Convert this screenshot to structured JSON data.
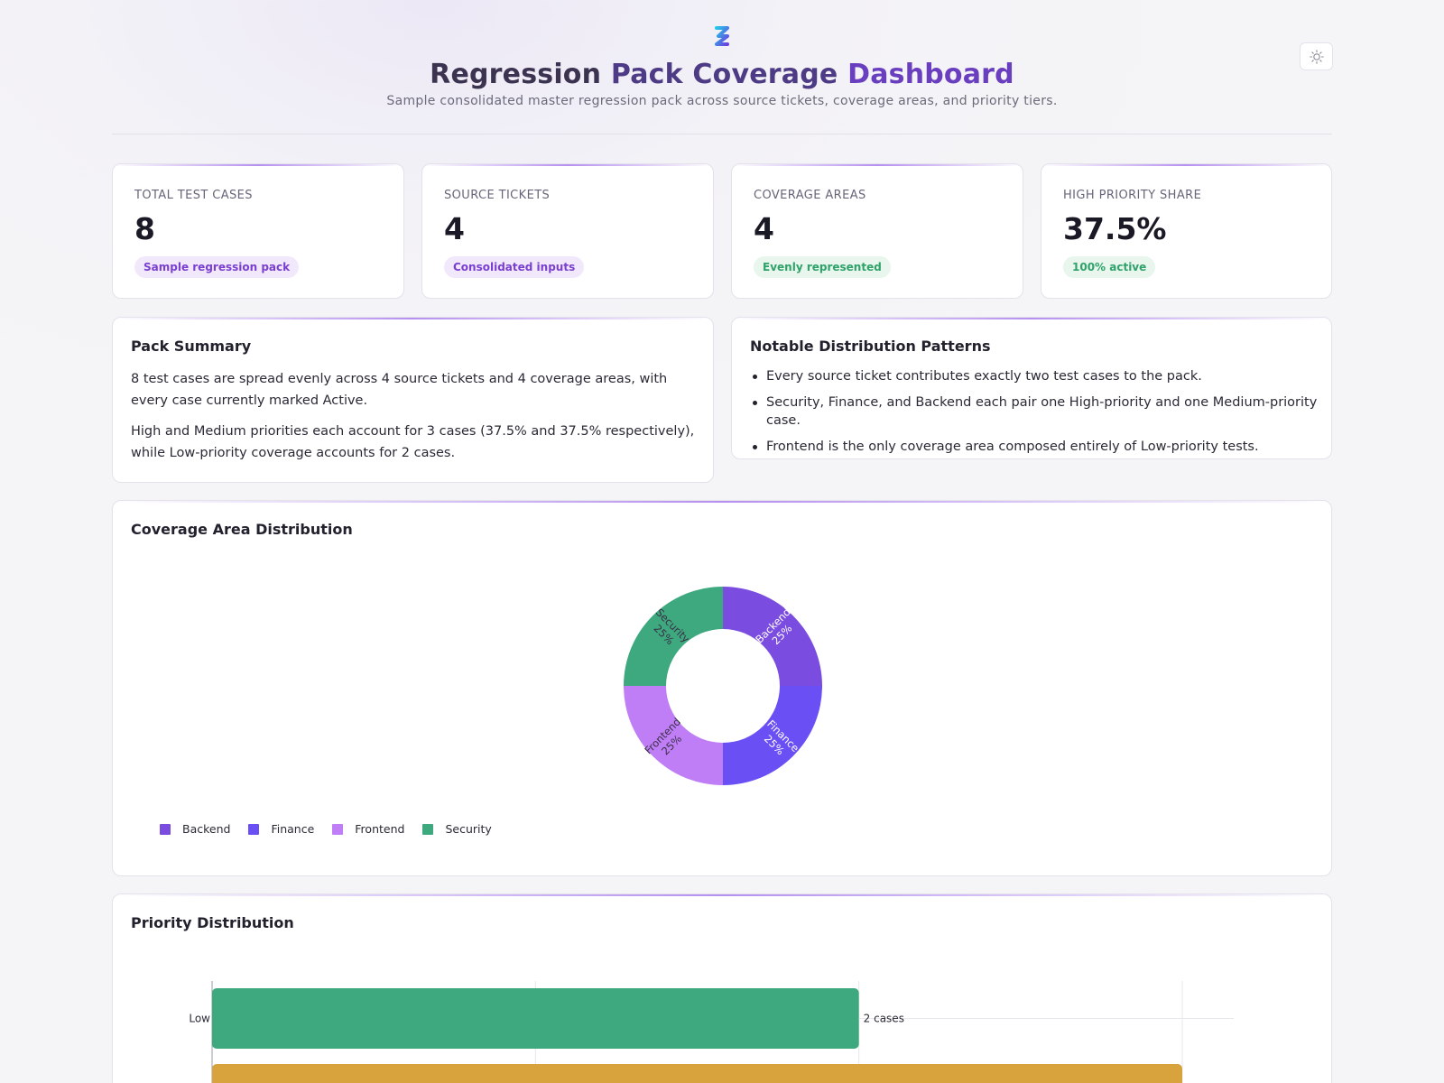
{
  "header": {
    "title_part1": "Regression",
    "title_part2": "Pack Coverage",
    "title_part3": "Dashboard",
    "subtitle": "Sample consolidated master regression pack across source tickets, coverage areas, and priority tiers."
  },
  "kpis": [
    {
      "label": "TOTAL TEST CASES",
      "value": "8",
      "badge": "Sample regression pack",
      "badge_color": "#7a3fcf"
    },
    {
      "label": "SOURCE TICKETS",
      "value": "4",
      "badge": "Consolidated inputs",
      "badge_color": "#7a3fcf"
    },
    {
      "label": "COVERAGE AREAS",
      "value": "4",
      "badge": "Evenly represented",
      "badge_color": "#2fa26a"
    },
    {
      "label": "HIGH PRIORITY SHARE",
      "value": "37.5%",
      "badge": "100% active",
      "badge_color": "#2fa26a"
    }
  ],
  "summary": {
    "title": "Pack Summary",
    "p1": "8 test cases are spread evenly across 4 source tickets and 4 coverage areas, with every case currently marked Active.",
    "p2": "High and Medium priorities each account for 3 cases (37.5% and 37.5% respectively), while Low-priority coverage accounts for 2 cases."
  },
  "patterns": {
    "title": "Notable Distribution Patterns",
    "items": [
      "Every source ticket contributes exactly two test cases to the pack.",
      "Security, Finance, and Backend each pair one High-priority and one Medium-priority case.",
      "Frontend is the only coverage area composed entirely of Low-priority tests."
    ]
  },
  "coverage_chart": {
    "title": "Coverage Area Distribution"
  },
  "priority_chart": {
    "title": "Priority Distribution"
  },
  "chart_data": [
    {
      "type": "pie",
      "title": "Coverage Area Distribution",
      "donut": true,
      "legend_position": "bottom-left",
      "slices": [
        {
          "label": "Backend",
          "value": 25,
          "display": "25%",
          "color": "#7b4ce0"
        },
        {
          "label": "Finance",
          "value": 25,
          "display": "25%",
          "color": "#6a4ff5"
        },
        {
          "label": "Frontend",
          "value": 25,
          "display": "25%",
          "color": "#c07ef6"
        },
        {
          "label": "Security",
          "value": 25,
          "display": "25%",
          "color": "#3ea87e"
        }
      ]
    },
    {
      "type": "bar",
      "orientation": "horizontal",
      "title": "Priority Distribution",
      "grid": true,
      "xlim": [
        0,
        3
      ],
      "bars": [
        {
          "label": "Low",
          "value": 2,
          "display": "2 cases",
          "color": "#3ea87e"
        },
        {
          "label": "",
          "value": 3,
          "display": "",
          "color": "#d8a33d"
        }
      ]
    }
  ]
}
